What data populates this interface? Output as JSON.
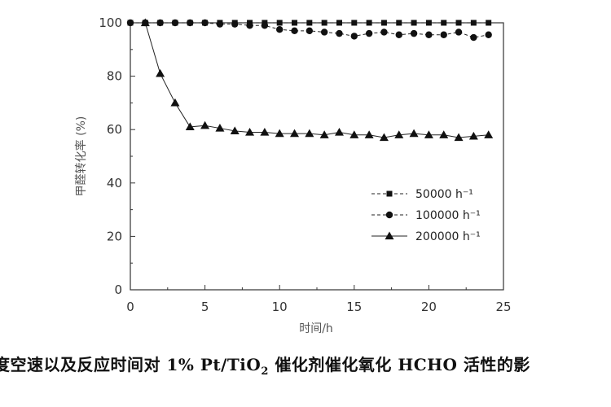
{
  "chart_data": {
    "type": "line",
    "xlabel": "时间/h",
    "ylabel": "甲醛转化率 (%)",
    "xlim": [
      0,
      25
    ],
    "ylim": [
      0,
      100
    ],
    "xticks": [
      "0",
      "5",
      "10",
      "15",
      "20",
      "25"
    ],
    "yticks": [
      "0",
      "20",
      "40",
      "60",
      "80",
      "100"
    ],
    "grid": false,
    "legend_position": "lower-right",
    "series": [
      {
        "name": "50000 h⁻¹",
        "marker": "square",
        "x": [
          0,
          1,
          2,
          3,
          4,
          5,
          6,
          7,
          8,
          9,
          10,
          11,
          12,
          13,
          14,
          15,
          16,
          17,
          18,
          19,
          20,
          21,
          22,
          23,
          24
        ],
        "y": [
          100,
          100,
          100,
          100,
          100,
          100,
          100,
          100,
          100,
          100,
          100,
          100,
          100,
          100,
          100,
          100,
          100,
          100,
          100,
          100,
          100,
          100,
          100,
          100,
          100
        ]
      },
      {
        "name": "100000 h⁻¹",
        "marker": "circle",
        "x": [
          0,
          1,
          2,
          3,
          4,
          5,
          6,
          7,
          8,
          9,
          10,
          11,
          12,
          13,
          14,
          15,
          16,
          17,
          18,
          19,
          20,
          21,
          22,
          23,
          24
        ],
        "y": [
          100,
          100,
          100,
          100,
          100,
          100,
          99.5,
          99.5,
          99,
          99,
          97.5,
          97,
          97,
          96.5,
          96,
          95,
          96,
          96.5,
          95.5,
          96,
          95.5,
          95.5,
          96.5,
          94.5,
          95.5
        ]
      },
      {
        "name": "200000 h⁻¹",
        "marker": "triangle",
        "x": [
          1,
          2,
          3,
          4,
          5,
          6,
          7,
          8,
          9,
          10,
          11,
          12,
          13,
          14,
          15,
          16,
          17,
          18,
          19,
          20,
          21,
          22,
          23,
          24
        ],
        "y": [
          100,
          81,
          70,
          61,
          61.5,
          60.5,
          59.5,
          59,
          59,
          58.5,
          58.5,
          58.5,
          58,
          59,
          58,
          58,
          57,
          58,
          58.5,
          58,
          58,
          57,
          57.5,
          58
        ]
      }
    ]
  },
  "caption": {
    "before_sub": "度空速以及反应时间对 1% Pt/TiO",
    "sub": "2",
    "after_sub": " 催化剂催化氧化 HCHO 活性的影"
  }
}
